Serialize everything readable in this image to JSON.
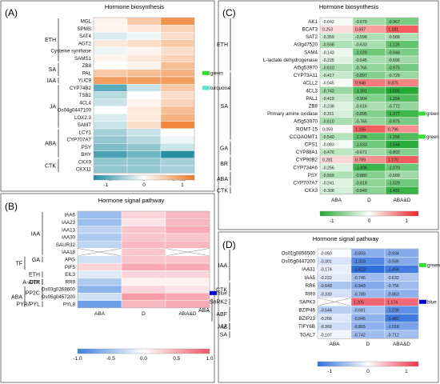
{
  "colors": {
    "accent_green": "#33dd33",
    "accent_turquoise": "#5fe0c8",
    "accent_blue": "#0000cc"
  },
  "chart_data": [
    {
      "panel": "(A)",
      "title": "Hormone biosynthesis",
      "type": "heatmap",
      "columns": [
        "ABA",
        "D",
        "ABA&D"
      ],
      "rows": [
        "MGL",
        "SPMS",
        "SAT4",
        "AGT2",
        "Cysteine synthase",
        "SAMS1",
        "ZB8",
        "PAL",
        "YUC9",
        "CYP74B2",
        "TSB2",
        "4CL4",
        "Os04g0447100",
        "LOX2.3",
        "SAMT",
        "LCY1",
        "CYP707A7",
        "PSY",
        "BHY",
        "CKX9",
        "CKX11"
      ],
      "values": [
        [
          0.1,
          0.5,
          1.0
        ],
        [
          0.1,
          0.2,
          0.4
        ],
        [
          -0.2,
          -0.1,
          0.3
        ],
        [
          0.2,
          0.3,
          0.5
        ],
        [
          -0.1,
          0.1,
          0.3
        ],
        [
          0.1,
          0.2,
          0.4
        ],
        [
          0.0,
          0.1,
          0.6
        ],
        [
          0.5,
          0.6,
          0.7
        ],
        [
          0.9,
          0.9,
          0.9
        ],
        [
          -0.9,
          -0.3,
          0.5
        ],
        [
          -0.4,
          0.0,
          0.3
        ],
        [
          -0.3,
          0.1,
          0.4
        ],
        [
          0.0,
          0.2,
          0.6
        ],
        [
          -0.2,
          0.2,
          0.7
        ],
        [
          -0.3,
          0.3,
          1.1
        ],
        [
          -0.5,
          -0.3,
          0.0
        ],
        [
          -0.6,
          -0.4,
          -0.1
        ],
        [
          -0.7,
          -0.6,
          -0.3
        ],
        [
          -1.0,
          -0.8,
          -1.2
        ],
        [
          -0.6,
          -0.6,
          -0.5
        ],
        [
          -0.6,
          -0.6,
          -0.5
        ]
      ],
      "groups": [
        {
          "label": "ETH",
          "from": 0,
          "to": 5
        },
        {
          "label": "SA",
          "from": 6,
          "to": 7
        },
        {
          "label": "IAA",
          "from": 8,
          "to": 8
        },
        {
          "label": "JA",
          "from": 9,
          "to": 14
        },
        {
          "label": "ABA",
          "from": 15,
          "to": 18
        },
        {
          "label": "CTK",
          "from": 19,
          "to": 20
        }
      ],
      "markers": [
        {
          "row": 7,
          "color": "green",
          "label": "green"
        },
        {
          "row": 9,
          "color": "turquoise",
          "label": "turquoise"
        }
      ],
      "colorbar": {
        "ticks": [
          "-1",
          "0",
          "1"
        ],
        "min": -1.25,
        "max": 1.25,
        "colors": [
          "#1d8a9e",
          "#ffffff",
          "#ee7722"
        ]
      }
    },
    {
      "panel": "(B)",
      "title": "Hormone signal pathway",
      "type": "heatmap",
      "columns": [
        "ABA",
        "D",
        "ABA&D"
      ],
      "rows": [
        "IAA6",
        "IAA23",
        "IAA13",
        "IAA30",
        "SAUR32",
        "IAA18",
        "APG",
        "PIF5",
        "EIL3",
        "RR9",
        "Os03g0268600",
        "Os05g0457200",
        "PYL8"
      ],
      "values": [
        [
          -0.6,
          0.3,
          0.5
        ],
        [
          -0.6,
          0.2,
          0.5
        ],
        [
          -0.4,
          0.4,
          0.6
        ],
        [
          -0.5,
          0.4,
          0.4
        ],
        [
          -0.4,
          0.5,
          0.5
        ],
        [
          null,
          0.4,
          null
        ],
        [
          -0.3,
          0.4,
          0.4
        ],
        [
          0.3,
          0.6,
          0.6
        ],
        [
          -0.2,
          0.3,
          0.3
        ],
        [
          -0.5,
          0.1,
          0.1
        ],
        [
          -0.7,
          0.3,
          0.2
        ],
        [
          -0.3,
          0.7,
          0.6
        ],
        [
          -0.9,
          0.5,
          0.6
        ]
      ],
      "groups": [
        {
          "label": "IAA",
          "from": 0,
          "to": 5
        },
        {
          "label": "GA",
          "from": 6,
          "to": 6
        },
        {
          "label": "TF",
          "from": 6,
          "to": 7
        },
        {
          "label": "ETH",
          "from": 8,
          "to": 8
        },
        {
          "label": "A-ARR",
          "from": 9,
          "to": 9
        },
        {
          "label": "CTK",
          "from": 9,
          "to": 9
        },
        {
          "label": "PP2C",
          "from": 10,
          "to": 11
        },
        {
          "label": "PYR/PYL",
          "from": 12,
          "to": 12
        },
        {
          "label": "ABA",
          "from": 10,
          "to": 12
        }
      ],
      "markers": [
        {
          "row": 10,
          "row2": 11,
          "color": "blue",
          "label": "blue"
        }
      ],
      "colorbar": {
        "ticks": [
          "-1.0",
          "-0.5",
          "0.0",
          "0.5",
          "1.0"
        ],
        "min": -1.2,
        "max": 1.2,
        "colors": [
          "#3c7fdb",
          "#ffffff",
          "#ee5566"
        ]
      }
    },
    {
      "panel": "(C)",
      "title": "Hormone biosynthesis",
      "type": "heatmap",
      "columns": [
        "ABA",
        "D",
        "ABA&D"
      ],
      "rows": [
        "AK1",
        "BCAT3",
        "SAT2",
        "At3g47520",
        "SAM4",
        "L-lactate dehydrogenase",
        "At5g53970",
        "CYP73A11",
        "4CLL2",
        "4CL3",
        "PAL1",
        "ZB8",
        "Primary amine oxidase",
        "At5g53970",
        "ROMT-15",
        "CCOAOMT1",
        "CPS1",
        "CYP88A1",
        "CYP90B2",
        "CYP734A6",
        "PSY",
        "CYP707A7",
        "CKX3"
      ],
      "values": [
        [
          -0.042,
          -0.679,
          -0.967
        ],
        [
          0.253,
          0.697,
          1.181
        ],
        [
          -0.359,
          -0.598,
          -0.588
        ],
        [
          -0.598,
          -0.633,
          -1.126
        ],
        [
          -0.143,
          -1.029,
          -0.948
        ],
        [
          -0.225,
          -0.645,
          -0.696
        ],
        [
          -0.61,
          -0.765,
          -0.975
        ],
        [
          -0.417,
          -0.897,
          -0.729
        ],
        [
          -0.045,
          0.948,
          0.875
        ],
        [
          -0.742,
          -1.301,
          -1.591
        ],
        [
          -0.419,
          -0.904,
          -1.264
        ],
        [
          -0.238,
          -0.616,
          -0.772
        ],
        [
          -0.311,
          -0.895,
          -1.377
        ],
        [
          -0.61,
          -0.765,
          -0.975
        ],
        [
          0.059,
          1.155,
          0.796
        ],
        [
          -0.54,
          -1.206,
          -1.256
        ],
        [
          -0.083,
          -1.033,
          -1.544
        ],
        [
          -0.476,
          -0.671,
          -0.892
        ],
        [
          0.281,
          0.789,
          1.17
        ],
        [
          -0.256,
          -1.406,
          -1.07
        ],
        [
          -0.569,
          -0.88,
          -0.689
        ],
        [
          -0.241,
          -0.818,
          -1.029
        ],
        [
          -0.308,
          -0.849,
          -1.431
        ]
      ],
      "groups": [
        {
          "label": "ETH",
          "from": 0,
          "to": 6
        },
        {
          "label": "SA",
          "from": 7,
          "to": 15
        },
        {
          "label": "GA",
          "from": 16,
          "to": 17
        },
        {
          "label": "BR",
          "from": 18,
          "to": 19
        },
        {
          "label": "ABA",
          "from": 20,
          "to": 21
        },
        {
          "label": "CTK",
          "from": 22,
          "to": 22
        }
      ],
      "markers": [
        {
          "row": 12,
          "color": "green",
          "label": "green"
        },
        {
          "row": 15,
          "color": "green",
          "label": "green"
        }
      ],
      "colorbar": {
        "ticks": [
          "-1",
          "0",
          "1"
        ],
        "min": -1.6,
        "max": 1.6,
        "colors": [
          "#22aa33",
          "#ffffff",
          "#ee2222"
        ]
      }
    },
    {
      "panel": "(D)",
      "title": "Hormone signal pathway",
      "type": "heatmap",
      "columns": [
        "ABA",
        "D",
        "ABA&D"
      ],
      "rows": [
        "Os01g0856500",
        "Os05g0447200",
        "IAA31",
        "IAA5",
        "RR6",
        "RR9",
        "SAPK3",
        "BZIP46",
        "BZIP23",
        "TIFY6B",
        "TGAL7"
      ],
      "values": [
        [
          -0.05,
          -0.893,
          -0.934
        ],
        [
          -0.301,
          -1.319,
          -0.936
        ],
        [
          -0.174,
          -1.623,
          -1.456
        ],
        [
          -0.222,
          -0.746,
          -0.632
        ],
        [
          -0.649,
          -0.943,
          -0.756
        ],
        [
          -0.33,
          -0.789,
          -0.863
        ],
        [
          null,
          1.205,
          1.174
        ],
        [
          -0.544,
          -0.681,
          -1.238
        ],
        [
          -0.266,
          -0.846,
          -1.482
        ],
        [
          -0.369,
          -0.865,
          -1.018
        ],
        [
          -0.107,
          -0.742,
          -0.712
        ]
      ],
      "groups": [
        {
          "label": "IAA",
          "from": 0,
          "to": 3
        },
        {
          "label": "CTK",
          "from": 4,
          "to": 5
        },
        {
          "label": "SnRK2",
          "from": 6,
          "to": 6
        },
        {
          "label": "ABF",
          "from": 7,
          "to": 8
        },
        {
          "label": "ABA",
          "from": 6,
          "to": 8
        },
        {
          "label": "JAZ",
          "from": 9,
          "to": 9
        },
        {
          "label": "JA",
          "from": 9,
          "to": 9
        },
        {
          "label": "SA",
          "from": 10,
          "to": 10
        }
      ],
      "markers": [
        {
          "row": 1,
          "row2": 2,
          "color": "green",
          "label": "green"
        },
        {
          "row": 6,
          "color": "blue",
          "label": "blue"
        }
      ],
      "colorbar": {
        "ticks": [
          "-1",
          "0",
          "1"
        ],
        "min": -1.6,
        "max": 1.6,
        "colors": [
          "#2f6fdd",
          "#ffffff",
          "#ee3344"
        ]
      }
    }
  ]
}
